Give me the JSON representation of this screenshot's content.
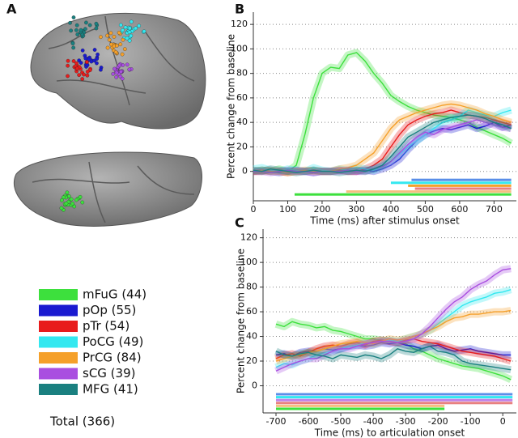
{
  "panel_a": {
    "label": "A",
    "legend": [
      {
        "label": "mFuG (44)",
        "color": "#3de03d"
      },
      {
        "label": "pOp (55)",
        "color": "#1a1ad0"
      },
      {
        "label": "pTr (54)",
        "color": "#e81c1c"
      },
      {
        "label": "PoCG (49)",
        "color": "#33e8f0"
      },
      {
        "label": "PrCG (84)",
        "color": "#f5a02a"
      },
      {
        "label": "sCG (39)",
        "color": "#a94ee0"
      },
      {
        "label": "MFG (41)",
        "color": "#1a8080"
      }
    ],
    "total": "Total (366)"
  },
  "chart_data": [
    {
      "type": "line",
      "label": "B",
      "ylabel": "Percent change from baseline",
      "xlabel": "Time (ms) after stimulus onset",
      "xlim": [
        0,
        765
      ],
      "xticks": [
        0,
        100,
        200,
        300,
        400,
        500,
        600,
        700
      ],
      "ylim": [
        -24,
        130
      ],
      "yticks": [
        0,
        20,
        40,
        60,
        80,
        100,
        120
      ],
      "grid": true,
      "x": [
        0,
        25,
        50,
        75,
        100,
        125,
        150,
        175,
        200,
        225,
        250,
        275,
        300,
        325,
        350,
        375,
        400,
        425,
        450,
        475,
        500,
        525,
        550,
        575,
        600,
        625,
        650,
        675,
        700,
        725,
        750
      ],
      "series": [
        {
          "color": "#3de03d",
          "values": [
            0,
            1,
            0,
            2,
            0,
            5,
            30,
            60,
            80,
            85,
            84,
            95,
            97,
            90,
            80,
            72,
            62,
            57,
            53,
            50,
            48,
            46,
            45,
            44,
            42,
            40,
            36,
            33,
            30,
            27,
            23
          ]
        },
        {
          "color": "#1a1ad0",
          "values": [
            0,
            1,
            0,
            -1,
            0,
            1,
            0,
            -1,
            0,
            0,
            1,
            0,
            0,
            1,
            0,
            2,
            5,
            10,
            18,
            25,
            30,
            33,
            35,
            34,
            36,
            38,
            35,
            37,
            40,
            36,
            38
          ]
        },
        {
          "color": "#e81c1c",
          "values": [
            0,
            0,
            1,
            0,
            -1,
            0,
            0,
            1,
            0,
            0,
            1,
            0,
            0,
            2,
            5,
            10,
            20,
            30,
            38,
            42,
            45,
            47,
            48,
            50,
            48,
            46,
            45,
            44,
            42,
            40,
            38
          ]
        },
        {
          "color": "#33e8f0",
          "values": [
            2,
            3,
            1,
            0,
            2,
            1,
            0,
            3,
            1,
            0,
            2,
            1,
            3,
            2,
            1,
            4,
            8,
            14,
            20,
            25,
            30,
            35,
            40,
            42,
            45,
            50,
            48,
            46,
            45,
            48,
            50
          ]
        },
        {
          "color": "#f5a02a",
          "values": [
            0,
            1,
            0,
            0,
            -1,
            0,
            1,
            0,
            0,
            0,
            2,
            3,
            5,
            10,
            15,
            25,
            35,
            42,
            45,
            48,
            50,
            52,
            54,
            55,
            54,
            52,
            50,
            47,
            45,
            42,
            40
          ]
        },
        {
          "color": "#a94ee0",
          "values": [
            0,
            0,
            -1,
            0,
            1,
            0,
            0,
            -1,
            0,
            0,
            0,
            1,
            0,
            0,
            2,
            4,
            8,
            15,
            22,
            28,
            32,
            30,
            34,
            36,
            38,
            40,
            42,
            40,
            38,
            36,
            35
          ]
        },
        {
          "color": "#1a8080",
          "values": [
            1,
            0,
            2,
            1,
            0,
            -1,
            0,
            1,
            0,
            0,
            -1,
            0,
            1,
            0,
            2,
            5,
            12,
            20,
            28,
            32,
            36,
            40,
            42,
            44,
            45,
            46,
            45,
            43,
            40,
            38,
            35
          ]
        }
      ],
      "significance": [
        {
          "color": "#5a8ee8",
          "start": 460,
          "end": 750
        },
        {
          "color": "#33e8f0",
          "start": 400,
          "end": 750
        },
        {
          "color": "#f5a02a",
          "start": 450,
          "end": 750
        },
        {
          "color": "#e88080",
          "start": 470,
          "end": 750
        },
        {
          "color": "#f5c080",
          "start": 270,
          "end": 750
        },
        {
          "color": "#3de03d",
          "start": 120,
          "end": 750
        }
      ]
    },
    {
      "type": "line",
      "label": "C",
      "ylabel": "Percent change from baseline",
      "xlabel": "Time (ms) to articulation onset",
      "xlim": [
        -740,
        42
      ],
      "xticks": [
        -700,
        -600,
        -500,
        -400,
        -300,
        -200,
        -100,
        0
      ],
      "ylim": [
        -22,
        127
      ],
      "yticks": [
        0,
        20,
        40,
        60,
        80,
        100,
        120
      ],
      "grid": true,
      "x": [
        -700,
        -675,
        -650,
        -625,
        -600,
        -575,
        -550,
        -525,
        -500,
        -475,
        -450,
        -425,
        -400,
        -375,
        -350,
        -325,
        -300,
        -275,
        -250,
        -225,
        -200,
        -175,
        -150,
        -125,
        -100,
        -75,
        -50,
        -25,
        0,
        25
      ],
      "series": [
        {
          "color": "#3de03d",
          "values": [
            50,
            48,
            52,
            50,
            49,
            47,
            48,
            45,
            44,
            42,
            40,
            38,
            38,
            37,
            36,
            35,
            34,
            30,
            28,
            25,
            22,
            20,
            18,
            16,
            15,
            14,
            12,
            10,
            8,
            5
          ]
        },
        {
          "color": "#1a1ad0",
          "values": [
            25,
            26,
            24,
            27,
            28,
            28,
            30,
            29,
            30,
            32,
            33,
            32,
            33,
            35,
            34,
            35,
            33,
            32,
            30,
            32,
            33,
            30,
            28,
            29,
            30,
            28,
            27,
            26,
            25,
            25
          ]
        },
        {
          "color": "#e81c1c",
          "values": [
            22,
            25,
            26,
            24,
            27,
            30,
            32,
            33,
            32,
            34,
            35,
            33,
            36,
            37,
            36,
            35,
            37,
            38,
            36,
            35,
            34,
            32,
            30,
            28,
            27,
            26,
            25,
            24,
            22,
            20
          ]
        },
        {
          "color": "#33e8f0",
          "values": [
            15,
            18,
            17,
            20,
            22,
            25,
            27,
            28,
            30,
            32,
            33,
            35,
            34,
            36,
            37,
            36,
            38,
            40,
            42,
            45,
            50,
            55,
            60,
            65,
            68,
            70,
            72,
            75,
            76,
            78
          ]
        },
        {
          "color": "#f5a02a",
          "values": [
            20,
            22,
            24,
            25,
            27,
            28,
            30,
            32,
            34,
            35,
            36,
            35,
            34,
            36,
            38,
            37,
            38,
            40,
            42,
            45,
            48,
            52,
            55,
            56,
            58,
            58,
            59,
            60,
            60,
            61
          ]
        },
        {
          "color": "#a94ee0",
          "values": [
            12,
            15,
            18,
            20,
            22,
            22,
            25,
            28,
            30,
            30,
            32,
            34,
            35,
            36,
            36,
            35,
            36,
            38,
            42,
            48,
            55,
            62,
            68,
            72,
            78,
            82,
            85,
            90,
            94,
            95
          ]
        },
        {
          "color": "#1a8080",
          "values": [
            28,
            25,
            24,
            26,
            27,
            25,
            24,
            22,
            25,
            24,
            23,
            25,
            24,
            22,
            25,
            30,
            28,
            27,
            30,
            32,
            28,
            27,
            25,
            20,
            18,
            17,
            16,
            15,
            14,
            13
          ]
        }
      ],
      "significance": [
        {
          "color": "#5a8ee8",
          "start": -700,
          "end": 30
        },
        {
          "color": "#33e8f0",
          "start": -700,
          "end": 30
        },
        {
          "color": "#c080e8",
          "start": -700,
          "end": 30
        },
        {
          "color": "#e88080",
          "start": -700,
          "end": 30
        },
        {
          "color": "#f5c080",
          "start": -700,
          "end": -180
        },
        {
          "color": "#3de03d",
          "start": -700,
          "end": -180
        }
      ]
    }
  ]
}
